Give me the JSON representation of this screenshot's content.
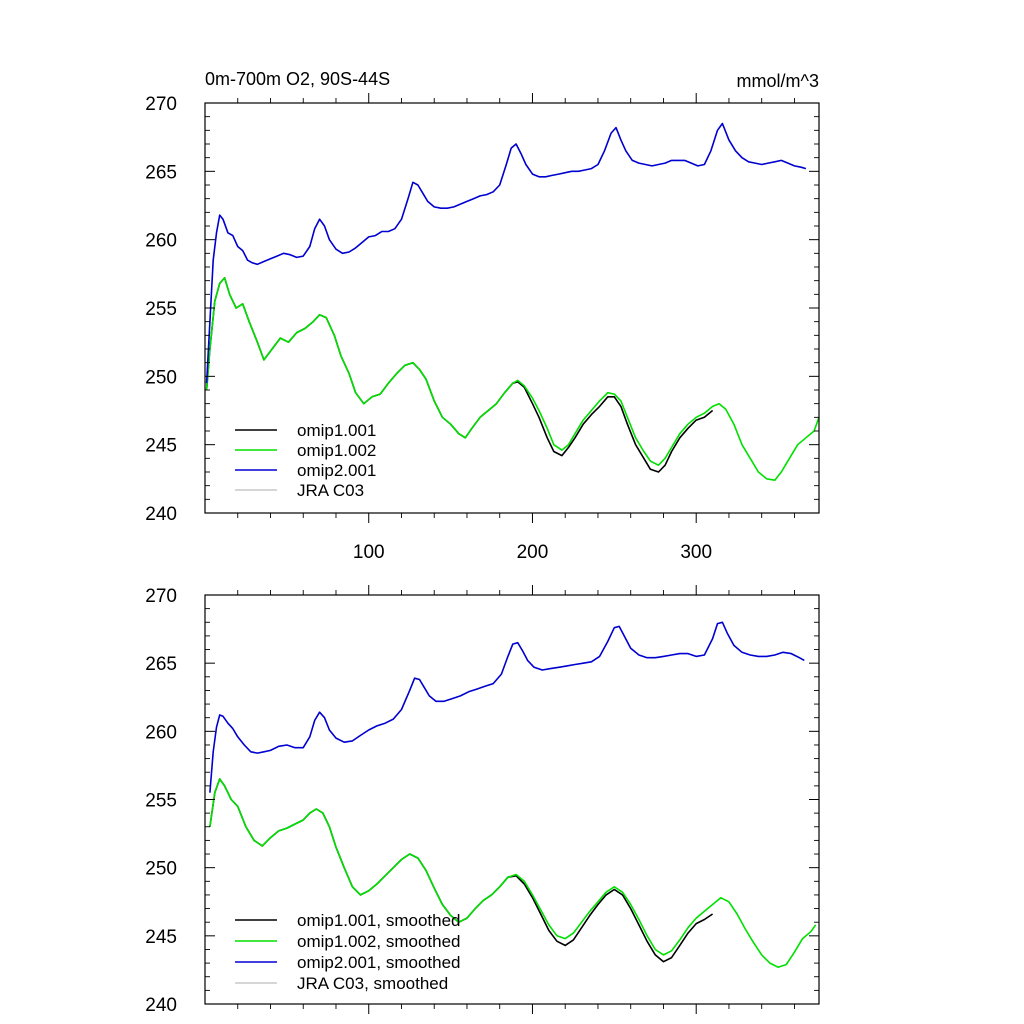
{
  "chart_data": [
    {
      "type": "line",
      "title_left": "0m-700m O2, 90S-44S",
      "title_right": "mmol/m^3",
      "xlim": [
        0,
        375
      ],
      "ylim": [
        240,
        270
      ],
      "xticks": [
        100,
        200,
        300
      ],
      "yticks": [
        240,
        245,
        250,
        255,
        260,
        265,
        270
      ],
      "legend_position": "bottom-left",
      "series": [
        {
          "name": "omip1.001",
          "color": "#000000",
          "x": [
            1,
            3,
            6,
            9,
            12,
            15,
            19,
            23,
            27,
            32,
            36,
            41,
            46,
            51,
            56,
            61,
            66,
            70,
            74,
            79,
            83,
            88,
            92,
            97,
            102,
            107,
            112,
            117,
            122,
            127,
            131,
            135,
            140,
            145,
            150,
            155,
            159,
            163,
            168,
            173,
            178,
            183,
            188,
            191,
            195,
            200,
            204,
            209,
            213,
            218,
            222,
            226,
            231,
            236,
            241,
            246,
            250,
            254,
            258,
            263,
            268,
            272,
            277,
            281,
            285,
            290,
            295,
            300,
            305,
            310
          ],
          "values": [
            249.0,
            252.0,
            255.5,
            256.8,
            257.2,
            256.0,
            255.0,
            255.3,
            254.0,
            252.5,
            251.2,
            252.0,
            252.8,
            252.5,
            253.2,
            253.5,
            254.0,
            254.5,
            254.3,
            253.0,
            251.5,
            250.2,
            248.8,
            248.0,
            248.5,
            248.7,
            249.5,
            250.2,
            250.8,
            251.0,
            250.5,
            249.8,
            248.2,
            247.0,
            246.5,
            245.8,
            245.5,
            246.2,
            247.0,
            247.5,
            248.0,
            248.8,
            249.5,
            249.6,
            249.2,
            248.0,
            247.0,
            245.5,
            244.5,
            244.2,
            244.8,
            245.5,
            246.5,
            247.2,
            247.8,
            248.5,
            248.5,
            247.8,
            246.5,
            245.0,
            244.0,
            243.2,
            243.0,
            243.5,
            244.5,
            245.5,
            246.2,
            246.8,
            247.0,
            247.5
          ]
        },
        {
          "name": "omip1.002",
          "color": "#00e000",
          "x": [
            1,
            3,
            6,
            9,
            12,
            15,
            19,
            23,
            27,
            32,
            36,
            41,
            46,
            51,
            56,
            61,
            66,
            70,
            74,
            79,
            83,
            88,
            92,
            97,
            102,
            107,
            112,
            117,
            122,
            127,
            131,
            135,
            140,
            145,
            150,
            155,
            159,
            163,
            168,
            173,
            178,
            183,
            188,
            191,
            195,
            200,
            204,
            209,
            213,
            218,
            222,
            226,
            231,
            236,
            241,
            246,
            250,
            254,
            258,
            263,
            268,
            272,
            277,
            281,
            285,
            290,
            295,
            300,
            305,
            310,
            314,
            318,
            323,
            328,
            333,
            338,
            343,
            348,
            352,
            357,
            362,
            367,
            372,
            375
          ],
          "values": [
            249.0,
            252.0,
            255.5,
            256.8,
            257.2,
            256.0,
            255.0,
            255.3,
            254.0,
            252.5,
            251.2,
            252.0,
            252.8,
            252.5,
            253.2,
            253.5,
            254.0,
            254.5,
            254.3,
            253.0,
            251.5,
            250.2,
            248.8,
            248.0,
            248.5,
            248.7,
            249.5,
            250.2,
            250.8,
            251.0,
            250.5,
            249.8,
            248.2,
            247.0,
            246.5,
            245.8,
            245.5,
            246.2,
            247.0,
            247.5,
            248.0,
            248.8,
            249.5,
            249.7,
            249.3,
            248.4,
            247.5,
            246.2,
            245.0,
            244.6,
            245.0,
            245.8,
            246.8,
            247.5,
            248.2,
            248.8,
            248.7,
            248.2,
            247.0,
            245.5,
            244.5,
            243.8,
            243.5,
            244.0,
            244.8,
            245.8,
            246.5,
            247.0,
            247.3,
            247.8,
            248.0,
            247.6,
            246.5,
            245.0,
            244.0,
            243.0,
            242.5,
            242.4,
            243.0,
            244.0,
            245.0,
            245.5,
            246.0,
            247.0
          ]
        },
        {
          "name": "omip2.001",
          "color": "#0000d0",
          "x": [
            1,
            3,
            5,
            7,
            9,
            11,
            14,
            17,
            20,
            23,
            26,
            29,
            32,
            36,
            40,
            44,
            48,
            52,
            56,
            60,
            64,
            67,
            70,
            73,
            76,
            80,
            84,
            88,
            92,
            96,
            100,
            104,
            108,
            112,
            116,
            120,
            124,
            127,
            130,
            133,
            136,
            140,
            144,
            148,
            152,
            156,
            160,
            164,
            168,
            172,
            176,
            180,
            184,
            187,
            190,
            193,
            196,
            200,
            204,
            208,
            212,
            216,
            220,
            224,
            228,
            232,
            236,
            240,
            244,
            248,
            251,
            254,
            257,
            261,
            265,
            269,
            273,
            277,
            281,
            285,
            289,
            293,
            297,
            301,
            305,
            309,
            313,
            316,
            320,
            324,
            328,
            332,
            336,
            340,
            344,
            348,
            352,
            356,
            360,
            364,
            367
          ],
          "values": [
            249.5,
            254.0,
            258.5,
            260.5,
            261.8,
            261.5,
            260.5,
            260.3,
            259.5,
            259.2,
            258.5,
            258.3,
            258.2,
            258.4,
            258.6,
            258.8,
            259.0,
            258.9,
            258.7,
            258.8,
            259.5,
            260.8,
            261.5,
            261.0,
            260.0,
            259.3,
            259.0,
            259.1,
            259.4,
            259.8,
            260.2,
            260.3,
            260.6,
            260.6,
            260.8,
            261.5,
            263.0,
            264.2,
            264.0,
            263.4,
            262.8,
            262.4,
            262.3,
            262.3,
            262.4,
            262.6,
            262.8,
            263.0,
            263.2,
            263.3,
            263.5,
            264.0,
            265.5,
            266.7,
            267.0,
            266.3,
            265.5,
            264.8,
            264.6,
            264.6,
            264.7,
            264.8,
            264.9,
            265.0,
            265.0,
            265.1,
            265.2,
            265.5,
            266.5,
            267.8,
            268.2,
            267.3,
            266.5,
            265.8,
            265.6,
            265.5,
            265.4,
            265.5,
            265.6,
            265.8,
            265.8,
            265.8,
            265.6,
            265.4,
            265.5,
            266.5,
            268.0,
            268.5,
            267.3,
            266.5,
            266.0,
            265.7,
            265.6,
            265.5,
            265.6,
            265.7,
            265.8,
            265.6,
            265.4,
            265.3,
            265.2
          ]
        },
        {
          "name": "JRA C03",
          "color": "#c8c8c8",
          "x": [],
          "values": []
        }
      ]
    },
    {
      "type": "line",
      "xlim": [
        0,
        375
      ],
      "ylim": [
        240,
        270
      ],
      "xticks": [
        100,
        200,
        300
      ],
      "yticks": [
        240,
        245,
        250,
        255,
        260,
        265,
        270
      ],
      "legend_position": "bottom-left",
      "series": [
        {
          "name": "omip1.001, smoothed",
          "color": "#000000",
          "x": [
            3,
            6,
            9,
            12,
            16,
            20,
            25,
            30,
            35,
            40,
            45,
            50,
            55,
            60,
            64,
            68,
            72,
            76,
            80,
            85,
            90,
            95,
            100,
            105,
            110,
            115,
            120,
            125,
            130,
            135,
            140,
            145,
            150,
            155,
            160,
            165,
            170,
            175,
            180,
            185,
            190,
            195,
            200,
            205,
            210,
            215,
            220,
            225,
            230,
            235,
            240,
            245,
            250,
            255,
            260,
            265,
            270,
            275,
            280,
            285,
            290,
            295,
            300,
            305,
            310
          ],
          "values": [
            253.0,
            255.5,
            256.5,
            256.0,
            255.0,
            254.5,
            253.0,
            252.0,
            251.6,
            252.2,
            252.7,
            252.9,
            253.2,
            253.5,
            254.0,
            254.3,
            254.0,
            253.0,
            251.5,
            250.0,
            248.6,
            248.0,
            248.3,
            248.8,
            249.4,
            250.0,
            250.6,
            251.0,
            250.7,
            249.8,
            248.5,
            247.3,
            246.5,
            246.0,
            246.3,
            247.0,
            247.6,
            248.0,
            248.6,
            249.3,
            249.4,
            248.8,
            247.8,
            246.6,
            245.4,
            244.6,
            244.3,
            244.7,
            245.6,
            246.5,
            247.3,
            248.0,
            248.4,
            248.0,
            247.0,
            245.8,
            244.6,
            243.6,
            243.1,
            243.4,
            244.3,
            245.2,
            245.9,
            246.2,
            246.6
          ]
        },
        {
          "name": "omip1.002, smoothed",
          "color": "#00e000",
          "x": [
            3,
            6,
            9,
            12,
            16,
            20,
            25,
            30,
            35,
            40,
            45,
            50,
            55,
            60,
            64,
            68,
            72,
            76,
            80,
            85,
            90,
            95,
            100,
            105,
            110,
            115,
            120,
            125,
            130,
            135,
            140,
            145,
            150,
            155,
            160,
            165,
            170,
            175,
            180,
            185,
            190,
            195,
            200,
            205,
            210,
            215,
            220,
            225,
            230,
            235,
            240,
            245,
            250,
            255,
            260,
            265,
            270,
            275,
            280,
            285,
            290,
            295,
            300,
            305,
            310,
            315,
            320,
            325,
            330,
            335,
            340,
            345,
            350,
            355,
            360,
            365,
            370,
            373
          ],
          "values": [
            253.0,
            255.5,
            256.5,
            256.0,
            255.0,
            254.5,
            253.0,
            252.0,
            251.6,
            252.2,
            252.7,
            252.9,
            253.2,
            253.5,
            254.0,
            254.3,
            254.0,
            253.0,
            251.5,
            250.0,
            248.6,
            248.0,
            248.3,
            248.8,
            249.4,
            250.0,
            250.6,
            251.0,
            250.7,
            249.8,
            248.5,
            247.3,
            246.5,
            246.0,
            246.3,
            247.0,
            247.6,
            248.0,
            248.6,
            249.3,
            249.5,
            249.0,
            248.0,
            246.9,
            245.8,
            245.0,
            244.8,
            245.2,
            246.0,
            246.8,
            247.5,
            248.2,
            248.6,
            248.2,
            247.3,
            246.2,
            245.0,
            244.0,
            243.6,
            243.9,
            244.7,
            245.6,
            246.3,
            246.8,
            247.3,
            247.8,
            247.5,
            246.6,
            245.5,
            244.5,
            243.6,
            243.0,
            242.7,
            242.9,
            243.8,
            244.8,
            245.3,
            245.8
          ]
        },
        {
          "name": "omip2.001, smoothed",
          "color": "#0000d0",
          "x": [
            3,
            5,
            7,
            9,
            11,
            14,
            17,
            20,
            24,
            28,
            32,
            36,
            40,
            45,
            50,
            55,
            60,
            64,
            67,
            70,
            73,
            76,
            80,
            85,
            90,
            95,
            100,
            105,
            110,
            115,
            120,
            125,
            128,
            131,
            134,
            137,
            141,
            146,
            151,
            156,
            161,
            166,
            171,
            176,
            181,
            185,
            188,
            191,
            194,
            197,
            201,
            206,
            211,
            216,
            221,
            226,
            231,
            236,
            241,
            246,
            250,
            253,
            256,
            260,
            265,
            270,
            275,
            280,
            285,
            290,
            295,
            300,
            305,
            310,
            313,
            316,
            319,
            323,
            328,
            333,
            338,
            343,
            348,
            353,
            358,
            363,
            366
          ],
          "values": [
            255.5,
            258.5,
            260.3,
            261.2,
            261.1,
            260.6,
            260.2,
            259.6,
            259.0,
            258.5,
            258.4,
            258.5,
            258.6,
            258.9,
            259.0,
            258.8,
            258.8,
            259.6,
            260.8,
            261.4,
            261.0,
            260.1,
            259.5,
            259.2,
            259.3,
            259.7,
            260.1,
            260.4,
            260.6,
            260.9,
            261.6,
            263.0,
            263.9,
            263.8,
            263.2,
            262.6,
            262.2,
            262.2,
            262.4,
            262.6,
            262.9,
            263.1,
            263.3,
            263.5,
            264.2,
            265.5,
            266.4,
            266.5,
            265.9,
            265.2,
            264.7,
            264.5,
            264.6,
            264.7,
            264.8,
            264.9,
            265.0,
            265.1,
            265.5,
            266.6,
            267.6,
            267.7,
            267.0,
            266.1,
            265.6,
            265.4,
            265.4,
            265.5,
            265.6,
            265.7,
            265.7,
            265.5,
            265.6,
            266.8,
            267.9,
            268.0,
            267.2,
            266.3,
            265.8,
            265.6,
            265.5,
            265.5,
            265.6,
            265.8,
            265.7,
            265.4,
            265.2
          ]
        },
        {
          "name": "JRA C03, smoothed",
          "color": "#c8c8c8",
          "x": [],
          "values": []
        }
      ]
    }
  ]
}
